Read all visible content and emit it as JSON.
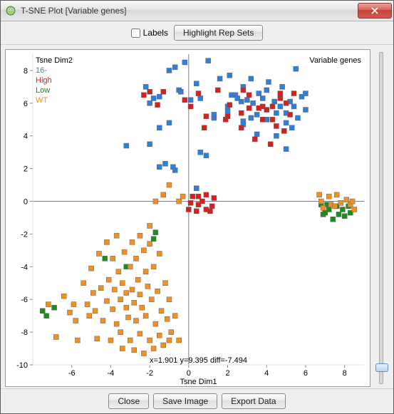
{
  "window": {
    "title": "T-SNE Plot [Variable genes]"
  },
  "toolbar": {
    "labels_checkbox": "Labels",
    "highlight_button": "Highlight Rep Sets"
  },
  "footer": {
    "close": "Close",
    "save_image": "Save Image",
    "export_data": "Export Data"
  },
  "slider": {
    "value_pct": 94
  },
  "chart": {
    "type": "scatter",
    "subtitle_right": "Variable genes",
    "ylabel_top": "Tsne Dim2",
    "xlabel": "Tsne Dim1",
    "status_text": "x=1.901 y=9.395 diff=-7.494",
    "background_color": "#ffffff",
    "axis_color": "#808080",
    "tick_color": "#808080",
    "text_color": "#000000",
    "xlim": [
      -8,
      9
    ],
    "ylim": [
      -10,
      9
    ],
    "xticks": [
      -6,
      -4,
      -2,
      0,
      2,
      4,
      6,
      8
    ],
    "yticks": [
      -10,
      -8,
      -6,
      -4,
      -2,
      0,
      2,
      4,
      6,
      8
    ],
    "tick_fontsize": 11,
    "label_fontsize": 11,
    "marker_size": 7,
    "marker_border": "#666666",
    "legend": {
      "position": "top-left-inside",
      "fontsize": 11,
      "items": [
        {
          "label": "16-",
          "color": "#2f7fd8"
        },
        {
          "label": "High",
          "color": "#d81f1f"
        },
        {
          "label": "Low",
          "color": "#1f8a1f"
        },
        {
          "label": "WT",
          "color": "#f09020"
        }
      ]
    },
    "series": [
      {
        "name": "16-",
        "color": "#2f7fd8",
        "points": [
          [
            -2.2,
            7.0
          ],
          [
            -1.8,
            6.3
          ],
          [
            -2.0,
            6.0
          ],
          [
            -1.5,
            6.4
          ],
          [
            -1.0,
            8.0
          ],
          [
            -0.7,
            8.2
          ],
          [
            -0.5,
            6.8
          ],
          [
            -0.4,
            6.7
          ],
          [
            -0.2,
            8.5
          ],
          [
            0.1,
            6.2
          ],
          [
            0.4,
            7.2
          ],
          [
            0.6,
            6.3
          ],
          [
            0.9,
            2.8
          ],
          [
            0.6,
            3.0
          ],
          [
            0.4,
            0.8
          ],
          [
            -3.2,
            3.4
          ],
          [
            -1.5,
            4.5
          ],
          [
            -1.0,
            4.8
          ],
          [
            1.0,
            8.6
          ],
          [
            1.3,
            5.1
          ],
          [
            1.3,
            5.3
          ],
          [
            1.6,
            7.5
          ],
          [
            2.0,
            5.5
          ],
          [
            2.0,
            5.8
          ],
          [
            2.4,
            6.5
          ],
          [
            2.2,
            6.5
          ],
          [
            2.1,
            7.7
          ],
          [
            2.7,
            6.1
          ],
          [
            2.5,
            6.3
          ],
          [
            2.8,
            4.9
          ],
          [
            2.8,
            7.0
          ],
          [
            3.2,
            5.1
          ],
          [
            3.3,
            6.0
          ],
          [
            3.0,
            6.2
          ],
          [
            3.2,
            7.5
          ],
          [
            3.5,
            5.3
          ],
          [
            3.6,
            6.6
          ],
          [
            3.8,
            6.3
          ],
          [
            4.0,
            6.8
          ],
          [
            4.0,
            5.0
          ],
          [
            4.1,
            7.3
          ],
          [
            4.4,
            6.1
          ],
          [
            4.5,
            4.0
          ],
          [
            4.5,
            5.4
          ],
          [
            4.7,
            5.8
          ],
          [
            4.8,
            7.0
          ],
          [
            5.0,
            3.2
          ],
          [
            5.0,
            4.8
          ],
          [
            5.0,
            5.4
          ],
          [
            5.2,
            6.1
          ],
          [
            5.3,
            4.5
          ],
          [
            5.4,
            5.8
          ],
          [
            5.5,
            8.1
          ],
          [
            5.6,
            5.1
          ],
          [
            5.8,
            6.4
          ],
          [
            6.0,
            6.6
          ],
          [
            6.0,
            5.6
          ],
          [
            2.8,
            4.7
          ],
          [
            3.5,
            4.1
          ],
          [
            -2.0,
            3.5
          ],
          [
            -1.5,
            2.1
          ],
          [
            -1.2,
            2.3
          ],
          [
            -0.8,
            2.1
          ],
          [
            -0.7,
            1.9
          ]
        ]
      },
      {
        "name": "High",
        "color": "#d81f1f",
        "points": [
          [
            -2.3,
            6.5
          ],
          [
            -2.0,
            6.7
          ],
          [
            -1.6,
            5.9
          ],
          [
            -1.3,
            6.7
          ],
          [
            -0.2,
            6.2
          ],
          [
            0.1,
            5.8
          ],
          [
            0.5,
            6.6
          ],
          [
            0.8,
            4.5
          ],
          [
            0.9,
            5.2
          ],
          [
            1.5,
            6.8
          ],
          [
            1.9,
            5.0
          ],
          [
            2.1,
            5.9
          ],
          [
            2.0,
            5.2
          ],
          [
            2.7,
            4.5
          ],
          [
            2.7,
            5.4
          ],
          [
            2.8,
            6.8
          ],
          [
            3.1,
            6.5
          ],
          [
            3.1,
            5.7
          ],
          [
            3.4,
            3.8
          ],
          [
            3.6,
            5.7
          ],
          [
            3.8,
            5.8
          ],
          [
            3.8,
            5.0
          ],
          [
            4.0,
            5.6
          ],
          [
            4.2,
            3.5
          ],
          [
            4.3,
            5.0
          ],
          [
            4.3,
            5.8
          ],
          [
            4.5,
            4.6
          ],
          [
            4.7,
            6.6
          ],
          [
            4.7,
            6.3
          ],
          [
            4.9,
            4.3
          ],
          [
            5.0,
            6.0
          ],
          [
            5.2,
            5.3
          ],
          [
            5.4,
            6.6
          ],
          [
            0.2,
            0.3
          ],
          [
            0.1,
            -0.1
          ],
          [
            0.5,
            -0.2
          ],
          [
            0.5,
            0.3
          ],
          [
            0.7,
            0.0
          ],
          [
            0.4,
            -0.6
          ],
          [
            0.9,
            -0.5
          ],
          [
            1.2,
            -0.3
          ],
          [
            1.3,
            0.2
          ],
          [
            1.1,
            -0.6
          ],
          [
            0.9,
            0.4
          ],
          [
            0.0,
            -0.5
          ]
        ]
      },
      {
        "name": "Low",
        "color": "#1f8a1f",
        "points": [
          [
            -7.5,
            -6.7
          ],
          [
            -7.3,
            -7.0
          ],
          [
            -6.9,
            -6.5
          ],
          [
            -4.3,
            -3.5
          ],
          [
            -3.2,
            -4.0
          ],
          [
            -1.7,
            -1.9
          ],
          [
            -1.8,
            -2.3
          ],
          [
            6.8,
            -0.2
          ],
          [
            6.9,
            -0.8
          ],
          [
            7.1,
            -0.2
          ],
          [
            7.0,
            -0.7
          ],
          [
            7.2,
            -0.5
          ],
          [
            7.4,
            -1.1
          ],
          [
            7.6,
            -0.3
          ],
          [
            7.7,
            -0.8
          ],
          [
            7.9,
            -0.5
          ],
          [
            8.0,
            -0.9
          ],
          [
            8.2,
            -0.3
          ],
          [
            8.3,
            -0.7
          ]
        ]
      },
      {
        "name": "WT",
        "color": "#f09020",
        "points": [
          [
            -7.2,
            -6.3
          ],
          [
            -6.8,
            -8.3
          ],
          [
            -6.4,
            -5.8
          ],
          [
            -6.1,
            -6.8
          ],
          [
            -5.9,
            -6.3
          ],
          [
            -5.8,
            -7.3
          ],
          [
            -5.7,
            -8.5
          ],
          [
            -5.4,
            -5.0
          ],
          [
            -5.2,
            -6.3
          ],
          [
            -5.1,
            -7.0
          ],
          [
            -5.0,
            -4.1
          ],
          [
            -4.9,
            -5.6
          ],
          [
            -4.8,
            -6.7
          ],
          [
            -4.7,
            -8.4
          ],
          [
            -4.6,
            -3.2
          ],
          [
            -4.5,
            -5.3
          ],
          [
            -4.4,
            -7.3
          ],
          [
            -4.2,
            -2.5
          ],
          [
            -4.2,
            -6.1
          ],
          [
            -4.1,
            -4.8
          ],
          [
            -4.0,
            -8.5
          ],
          [
            -3.9,
            -3.5
          ],
          [
            -3.9,
            -6.6
          ],
          [
            -3.8,
            -5.4
          ],
          [
            -3.7,
            -7.5
          ],
          [
            -3.7,
            -2.1
          ],
          [
            -3.6,
            -4.3
          ],
          [
            -3.5,
            -6.0
          ],
          [
            -3.5,
            -8.0
          ],
          [
            -3.4,
            -9.0
          ],
          [
            -3.4,
            -5.0
          ],
          [
            -3.3,
            -3.1
          ],
          [
            -3.2,
            -6.5
          ],
          [
            -3.2,
            -5.6
          ],
          [
            -3.1,
            -7.1
          ],
          [
            -3.0,
            -4.0
          ],
          [
            -3.0,
            -8.5
          ],
          [
            -2.9,
            -2.5
          ],
          [
            -2.9,
            -5.4
          ],
          [
            -2.8,
            -9.1
          ],
          [
            -2.8,
            -6.2
          ],
          [
            -2.7,
            -3.5
          ],
          [
            -2.7,
            -7.3
          ],
          [
            -2.6,
            -4.8
          ],
          [
            -2.5,
            -8.1
          ],
          [
            -2.5,
            -5.7
          ],
          [
            -2.5,
            -2.1
          ],
          [
            -2.4,
            -6.5
          ],
          [
            -2.3,
            -3.0
          ],
          [
            -2.3,
            -9.3
          ],
          [
            -2.2,
            -4.3
          ],
          [
            -2.2,
            -7.0
          ],
          [
            -2.1,
            -5.2
          ],
          [
            -2.0,
            -8.5
          ],
          [
            -2.0,
            -2.6
          ],
          [
            -2.0,
            -1.5
          ],
          [
            -1.9,
            -6.0
          ],
          [
            -1.8,
            -4.0
          ],
          [
            -1.8,
            -9.0
          ],
          [
            -1.7,
            -7.5
          ],
          [
            -1.6,
            -5.5
          ],
          [
            -1.5,
            -8.2
          ],
          [
            -1.5,
            -3.2
          ],
          [
            -1.4,
            -6.7
          ],
          [
            -1.3,
            -8.8
          ],
          [
            -1.2,
            -5.0
          ],
          [
            -1.1,
            -7.2
          ],
          [
            -1.0,
            -8.5
          ],
          [
            -1.0,
            -6.0
          ],
          [
            -0.9,
            -8.0
          ],
          [
            -0.7,
            -7.0
          ],
          [
            -0.5,
            -8.5
          ],
          [
            -1.7,
            0.0
          ],
          [
            -1.3,
            0.4
          ],
          [
            -1.0,
            1.0
          ],
          [
            -0.5,
            0.0
          ],
          [
            -0.3,
            0.3
          ],
          [
            6.7,
            0.4
          ],
          [
            6.8,
            0.0
          ],
          [
            6.9,
            -0.4
          ],
          [
            7.2,
            0.3
          ],
          [
            7.3,
            -0.2
          ],
          [
            7.5,
            -0.3
          ],
          [
            7.6,
            0.4
          ],
          [
            7.8,
            -0.1
          ],
          [
            8.1,
            0.1
          ],
          [
            8.3,
            -0.2
          ],
          [
            8.4,
            0.0
          ],
          [
            8.5,
            -0.5
          ]
        ]
      }
    ]
  }
}
